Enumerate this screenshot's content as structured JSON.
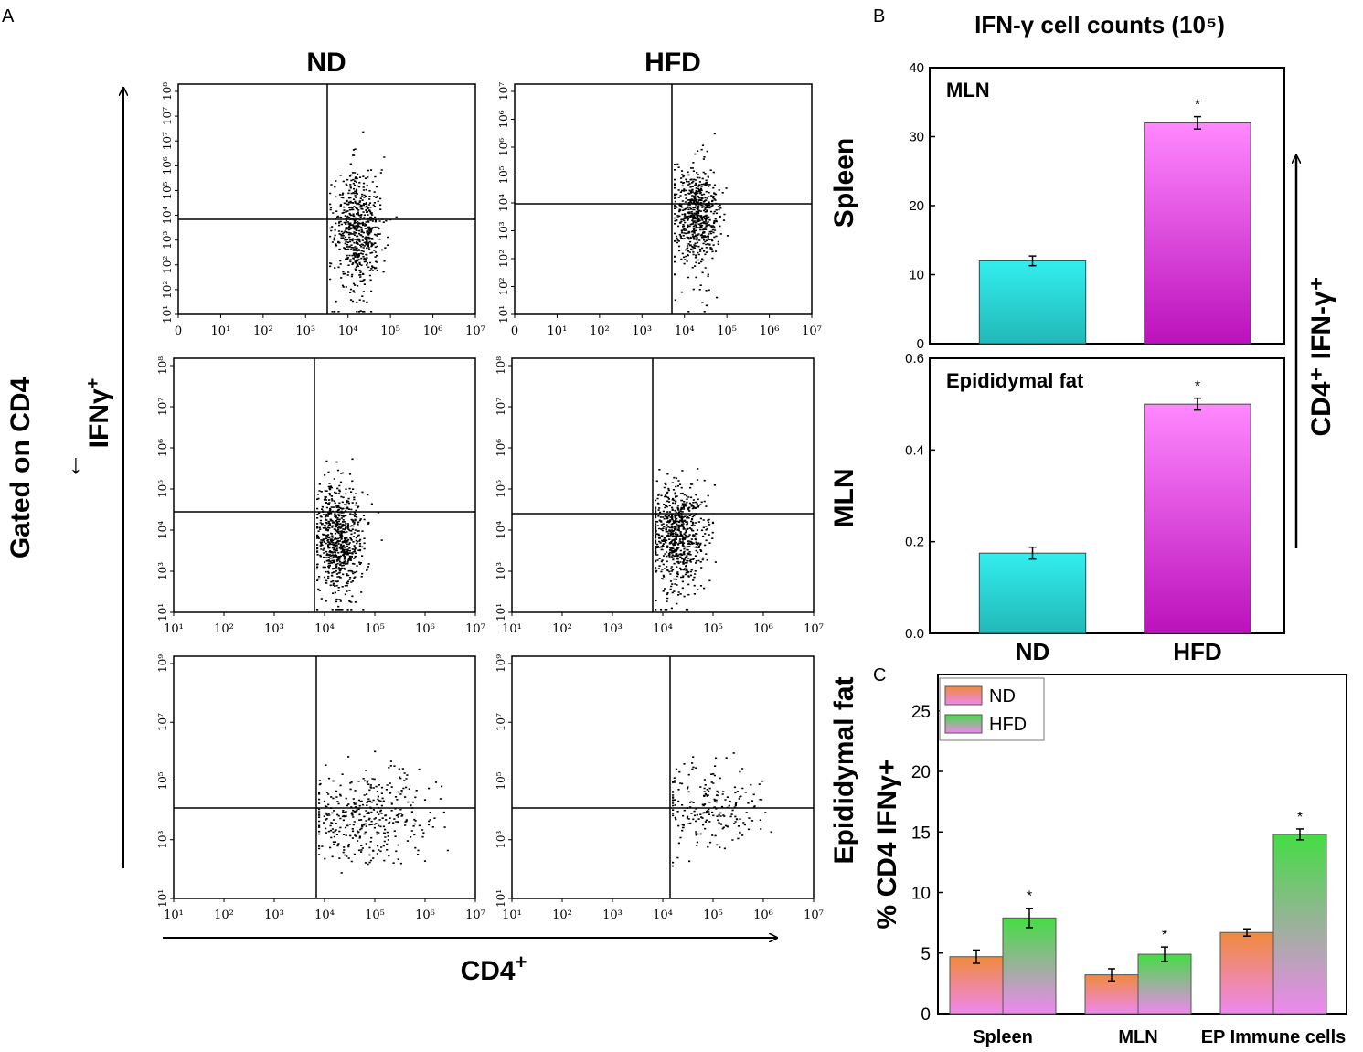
{
  "figure": {
    "panel_letters": [
      "A",
      "B",
      "C"
    ],
    "panel_a": {
      "column_headers": [
        "ND",
        "HFD"
      ],
      "row_labels": [
        "Spleen",
        "MLN",
        "Epididymal fat"
      ],
      "y_axis": {
        "gate": "Gated on CD4",
        "arrow_glyph": "→",
        "marker": "IFNγ",
        "sup": "+"
      },
      "x_axis": {
        "label": "CD4",
        "sup": "+"
      },
      "x_ticks": {
        "spleen_nd": [
          "0",
          "10¹",
          "10²",
          "10³",
          "10⁴",
          "10⁵",
          "10⁶",
          "10⁷"
        ],
        "spleen_hfd": [
          "0",
          "10¹",
          "10²",
          "10³",
          "10⁴",
          "10⁵",
          "10⁶",
          "10⁷"
        ],
        "mln_nd": [
          "10¹",
          "10²",
          "10³",
          "10⁴",
          "10⁵",
          "10⁶",
          "10⁷"
        ],
        "mln_hfd": [
          "10¹",
          "10²",
          "10³",
          "10⁴",
          "10⁵",
          "10⁶",
          "10⁷"
        ],
        "fat_nd": [
          "10¹",
          "10²",
          "10³",
          "10⁴",
          "10⁵",
          "10⁶",
          "10⁷"
        ],
        "fat_hfd": [
          "10¹",
          "10²",
          "10³",
          "10⁴",
          "10⁵",
          "10⁶",
          "10⁷"
        ]
      },
      "y_ticks": {
        "spleen_nd": [
          "10¹",
          "10²",
          "10²",
          "10³",
          "10⁴",
          "10⁵",
          "10⁶",
          "10⁷",
          "10⁷",
          "10⁸"
        ],
        "spleen_hfd": [
          "10¹",
          "10²",
          "10²",
          "10³",
          "10⁴",
          "10⁵",
          "10⁶",
          "10⁶",
          "10⁷"
        ],
        "mln": [
          "10¹",
          "10³",
          "10⁴",
          "10⁵",
          "10⁶",
          "10⁷",
          "10⁸"
        ],
        "fat": [
          "10¹",
          "10³",
          "10⁵",
          "10⁷",
          "10⁹"
        ]
      }
    }
  },
  "chart_data": [
    {
      "id": "B-MLN",
      "type": "bar",
      "title": "IFN-γ cell counts (10⁵)",
      "inner_label": "MLN",
      "categories": [
        "ND",
        "HFD"
      ],
      "values": [
        12,
        32
      ],
      "errors": [
        0.7,
        0.9
      ],
      "significant": [
        false,
        true
      ],
      "ylim": [
        0,
        40
      ],
      "yticks": [
        0,
        10,
        20,
        30,
        40
      ],
      "colors": [
        "#22d4d4",
        "#cc22cc"
      ]
    },
    {
      "id": "B-Epididymal",
      "type": "bar",
      "inner_label": "Epididymal fat",
      "categories": [
        "ND",
        "HFD"
      ],
      "values": [
        0.175,
        0.5
      ],
      "errors": [
        0.013,
        0.013
      ],
      "significant": [
        false,
        true
      ],
      "ylim": [
        0,
        0.6
      ],
      "yticks": [
        0.0,
        0.2,
        0.4,
        0.6
      ],
      "ytick_labels": [
        "0.0",
        "0.2",
        "0.4",
        "0.6"
      ],
      "side_label": "CD4⁺ IFN-γ⁺",
      "colors": [
        "#22d4d4",
        "#cc22cc"
      ]
    },
    {
      "id": "C",
      "type": "bar",
      "ylabel": "% CD4 IFNγ+",
      "categories": [
        "Spleen",
        "MLN",
        "EP Immune cells"
      ],
      "series": [
        {
          "name": "ND",
          "values": [
            4.7,
            3.2,
            6.7
          ],
          "errors": [
            0.55,
            0.5,
            0.3
          ],
          "significant": [
            false,
            false,
            false
          ]
        },
        {
          "name": "HFD",
          "values": [
            7.9,
            4.9,
            14.8
          ],
          "errors": [
            0.8,
            0.6,
            0.45
          ],
          "significant": [
            true,
            true,
            true
          ]
        }
      ],
      "ylim": [
        0,
        28
      ],
      "yticks": [
        0,
        5,
        10,
        15,
        20,
        25
      ],
      "legend": "top-left",
      "colors": {
        "ND": "#f08a3c",
        "HFD": "#44dd44",
        "base": "#ee88ee"
      }
    }
  ],
  "significance_mark": "*"
}
